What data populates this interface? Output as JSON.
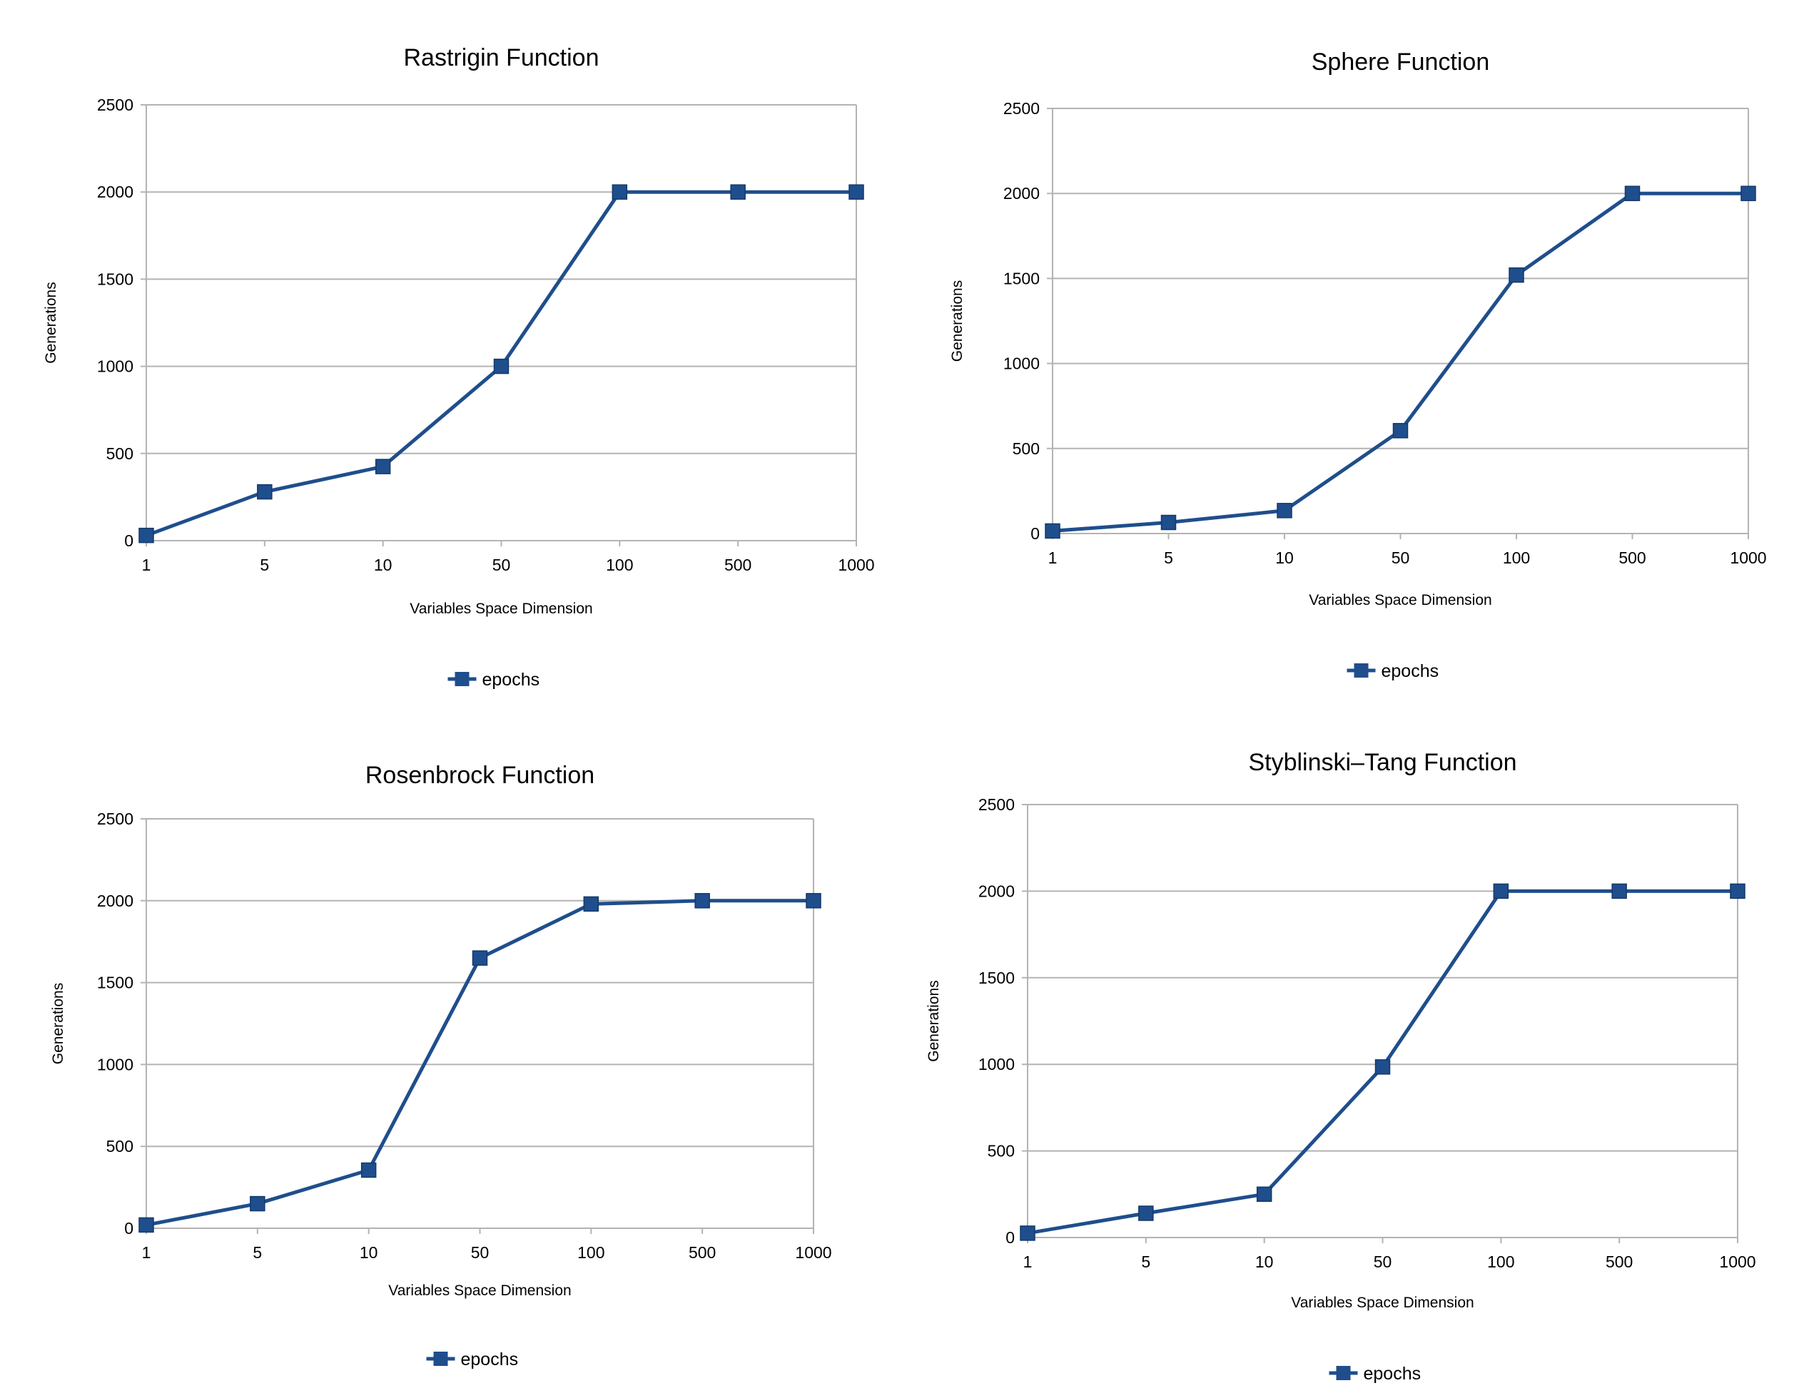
{
  "colors": {
    "series": "#1f4e8c",
    "grid": "#b3b3b3",
    "axis": "#b3b3b3"
  },
  "chart_data": [
    {
      "type": "line",
      "title": "Rastrigin Function",
      "xlabel": "Variables Space Dimension",
      "ylabel": "Generations",
      "categories": [
        "1",
        "5",
        "10",
        "50",
        "100",
        "500",
        "1000"
      ],
      "ylim": [
        0,
        2500
      ],
      "yticks": [
        "0",
        "500",
        "1000",
        "1500",
        "2000",
        "2500"
      ],
      "grid": true,
      "legend_position": "bottom",
      "series": [
        {
          "name": "epochs",
          "values": [
            30,
            280,
            425,
            1000,
            2000,
            2000,
            2000
          ]
        }
      ]
    },
    {
      "type": "line",
      "title": "Sphere Function",
      "xlabel": "Variables Space Dimension",
      "ylabel": "Generations",
      "categories": [
        "1",
        "5",
        "10",
        "50",
        "100",
        "500",
        "1000"
      ],
      "ylim": [
        0,
        2500
      ],
      "yticks": [
        "0",
        "500",
        "1000",
        "1500",
        "2000",
        "2500"
      ],
      "grid": true,
      "legend_position": "bottom",
      "series": [
        {
          "name": "epochs",
          "values": [
            15,
            65,
            135,
            605,
            1520,
            2000,
            2000
          ]
        }
      ]
    },
    {
      "type": "line",
      "title": "Rosenbrock Function",
      "xlabel": "Variables Space Dimension",
      "ylabel": "Generations",
      "categories": [
        "1",
        "5",
        "10",
        "50",
        "100",
        "500",
        "1000"
      ],
      "ylim": [
        0,
        2500
      ],
      "yticks": [
        "0",
        "500",
        "1000",
        "1500",
        "2000",
        "2500"
      ],
      "grid": true,
      "legend_position": "bottom",
      "series": [
        {
          "name": "epochs",
          "values": [
            20,
            150,
            355,
            1650,
            1980,
            2000,
            2000
          ]
        }
      ]
    },
    {
      "type": "line",
      "title": "Styblinski–Tang Function",
      "xlabel": "Variables Space Dimension",
      "ylabel": "Generations",
      "categories": [
        "1",
        "5",
        "10",
        "50",
        "100",
        "500",
        "1000"
      ],
      "ylim": [
        0,
        2500
      ],
      "yticks": [
        "0",
        "500",
        "1000",
        "1500",
        "2000",
        "2500"
      ],
      "grid": true,
      "legend_position": "bottom",
      "series": [
        {
          "name": "epochs",
          "values": [
            25,
            140,
            250,
            985,
            2000,
            2000,
            2000
          ]
        }
      ]
    }
  ]
}
